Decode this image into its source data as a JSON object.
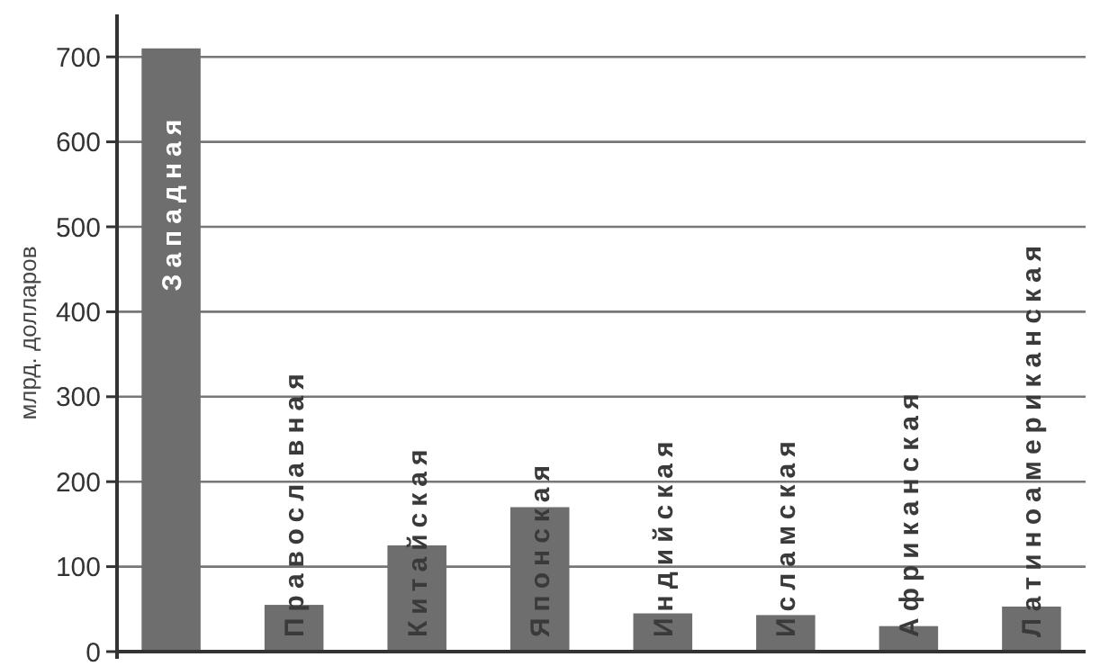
{
  "chart_data": {
    "type": "bar",
    "ylabel": "млрд. долларов",
    "categories": [
      "Западная",
      "Православная",
      "Китайская",
      "Японская",
      "Индийская",
      "Исламская",
      "Африканская",
      "Латиноамериканская"
    ],
    "values": [
      710,
      55,
      125,
      170,
      45,
      43,
      30,
      53
    ],
    "color": "#6e6e6e",
    "ylim": [
      0,
      750
    ],
    "yticks": [
      0,
      100,
      200,
      300,
      400,
      500,
      600,
      700
    ],
    "grid": "y"
  }
}
